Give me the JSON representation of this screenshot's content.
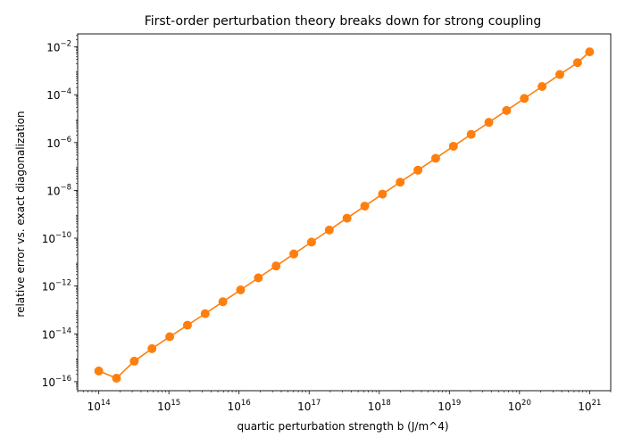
{
  "chart_data": {
    "type": "line",
    "title": "First-order perturbation theory breaks down for strong coupling",
    "xlabel": "quartic perturbation strength b (J/m^4)",
    "ylabel": "relative error vs. exact diagonalization",
    "xscale": "log",
    "yscale": "log",
    "xlim": [
      50000000000000.0,
      2e+21
    ],
    "ylim": [
      4.2e-17,
      0.035
    ],
    "grid": false,
    "x_ticks": [
      {
        "value": 100000000000000.0,
        "base": "10",
        "exp": "14"
      },
      {
        "value": 1000000000000000.0,
        "base": "10",
        "exp": "15"
      },
      {
        "value": 1e+16,
        "base": "10",
        "exp": "16"
      },
      {
        "value": 1e+17,
        "base": "10",
        "exp": "17"
      },
      {
        "value": 1e+18,
        "base": "10",
        "exp": "18"
      },
      {
        "value": 1e+19,
        "base": "10",
        "exp": "19"
      },
      {
        "value": 1e+20,
        "base": "10",
        "exp": "20"
      },
      {
        "value": 1e+21,
        "base": "10",
        "exp": "21"
      }
    ],
    "y_ticks": [
      {
        "value": 1e-16,
        "base": "10",
        "exp": "−16"
      },
      {
        "value": 1e-14,
        "base": "10",
        "exp": "−14"
      },
      {
        "value": 1e-12,
        "base": "10",
        "exp": "−12"
      },
      {
        "value": 1e-10,
        "base": "10",
        "exp": "−10"
      },
      {
        "value": 1e-08,
        "base": "10",
        "exp": "−8"
      },
      {
        "value": 1e-06,
        "base": "10",
        "exp": "−6"
      },
      {
        "value": 0.0001,
        "base": "10",
        "exp": "−4"
      },
      {
        "value": 0.01,
        "base": "10",
        "exp": "−2"
      }
    ],
    "series": [
      {
        "color": "#ff7f0e",
        "marker": "circle",
        "x": [
          100000000000000.0,
          178900000000000.0,
          320400000000000.0,
          573600000000000.0,
          1027000000000000.0,
          1838000000000000.0,
          3290000000000000.0,
          5890000000000000.0,
          1.054e+16,
          1.887e+16,
          3.378e+16,
          6.047e+16,
          1.083e+17,
          1.938e+17,
          3.469e+17,
          6.21e+17,
          1.112e+18,
          1.99e+18,
          3.562e+18,
          6.377e+18,
          1.142e+19,
          2.043e+19,
          3.658e+19,
          6.548e+19,
          1.172e+20,
          2.098e+20,
          3.757e+20,
          6.725e+20,
          1e+21
        ],
        "y": [
          2.8e-16,
          1.4e-16,
          7.2e-16,
          2.4e-15,
          7.6e-15,
          2.3e-14,
          7e-14,
          2.2e-13,
          6.9e-13,
          2.2e-12,
          6.9e-12,
          2.2e-11,
          6.9e-11,
          2.2e-10,
          6.9e-10,
          2.2e-09,
          7e-09,
          2.2e-08,
          7e-08,
          2.2e-07,
          7e-07,
          2.2e-06,
          7e-06,
          2.2e-05,
          7e-05,
          0.00022,
          0.0007,
          0.0022,
          0.0062
        ]
      }
    ]
  }
}
